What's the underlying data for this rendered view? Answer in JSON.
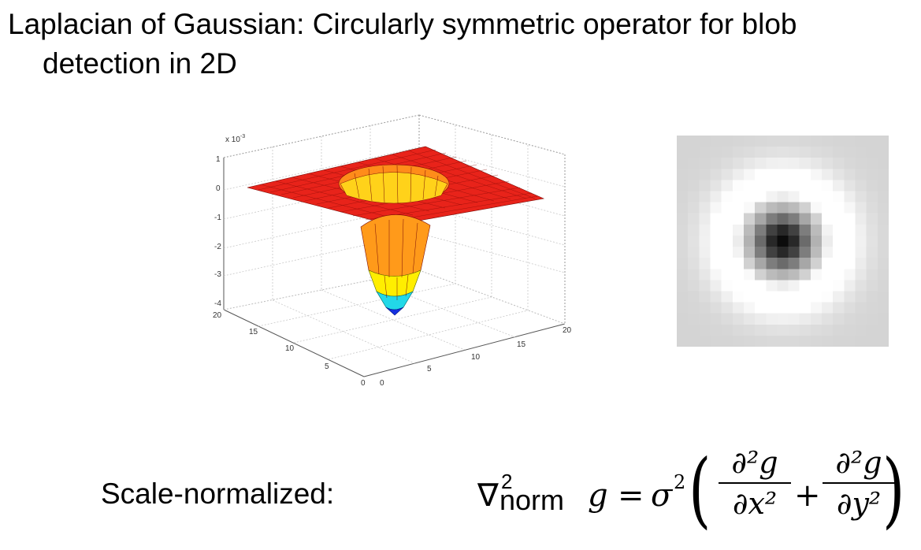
{
  "slide": {
    "title_line1": "Laplacian of Gaussian: Circularly symmetric operator for blob",
    "title_line2": "detection in 2D",
    "label": "Scale-normalized:"
  },
  "plot": {
    "exponent_label": "x 10",
    "exponent_sup": "-3",
    "z_ticks": [
      "1",
      "0",
      "-1",
      "-2",
      "-3",
      "-4"
    ],
    "y_ticks": [
      "20",
      "15",
      "10",
      "5",
      "0"
    ],
    "x_ticks": [
      "0",
      "5",
      "10",
      "15",
      "20"
    ]
  },
  "formula": {
    "nabla": "∇",
    "nabla_sup": "2",
    "nabla_sub": "norm",
    "lhs_var": "g",
    "equals": "=",
    "sigma": "σ",
    "sigma_sup": "2",
    "frac1_num": "∂²g",
    "frac1_den": "∂x²",
    "plus": "+",
    "frac2_num": "∂²g",
    "frac2_den": "∂y²"
  },
  "colors": {
    "surface_red": "#e8231a",
    "surface_orange": "#ff9a1a",
    "surface_yellow": "#ffee00",
    "surface_cyan": "#22d8e8",
    "surface_blue": "#1530e0"
  }
}
